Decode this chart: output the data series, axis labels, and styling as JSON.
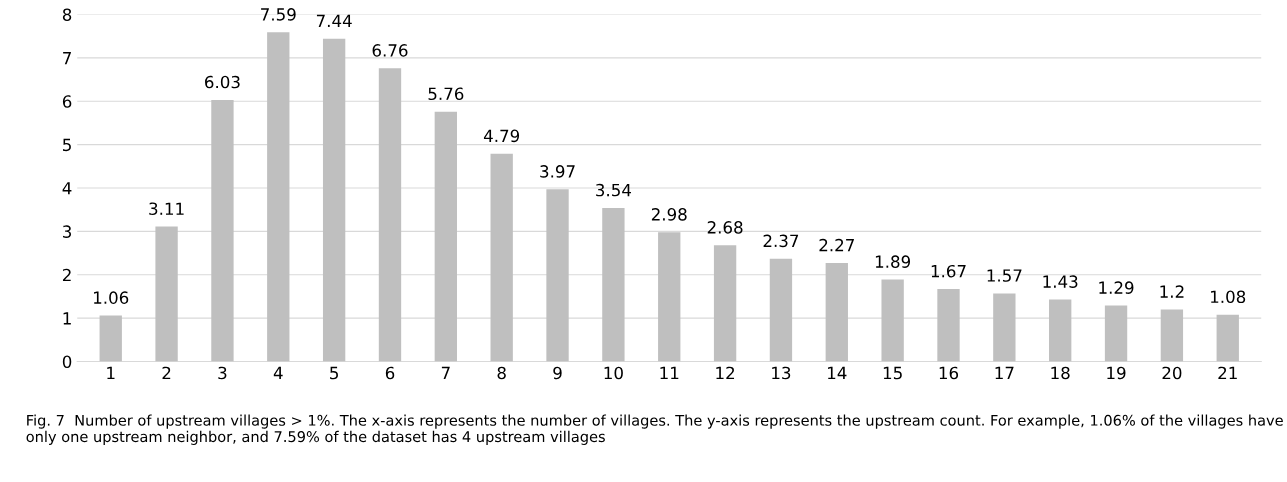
{
  "chart_data": {
    "type": "bar",
    "categories": [
      "1",
      "2",
      "3",
      "4",
      "5",
      "6",
      "7",
      "8",
      "9",
      "10",
      "11",
      "12",
      "13",
      "14",
      "15",
      "16",
      "17",
      "18",
      "19",
      "20",
      "21"
    ],
    "values": [
      1.06,
      3.11,
      6.03,
      7.59,
      7.44,
      6.76,
      5.76,
      4.79,
      3.97,
      3.54,
      2.98,
      2.68,
      2.37,
      2.27,
      1.89,
      1.67,
      1.57,
      1.43,
      1.29,
      1.2,
      1.08
    ],
    "color": "#bfbfbf",
    "ylim": [
      0,
      8
    ],
    "yticks": [
      0,
      1,
      2,
      3,
      4,
      5,
      6,
      7,
      8
    ],
    "grid": "y",
    "data_labels": true,
    "annotations": [
      "Fig. 7  Number of upstream villages > 1%. The x-axis represents the number of villages. The y-axis represents the upstream count. For example, 1.06% of the villages have only one upstream neighbor, and 7.59% of the dataset has 4 upstream villages"
    ]
  }
}
